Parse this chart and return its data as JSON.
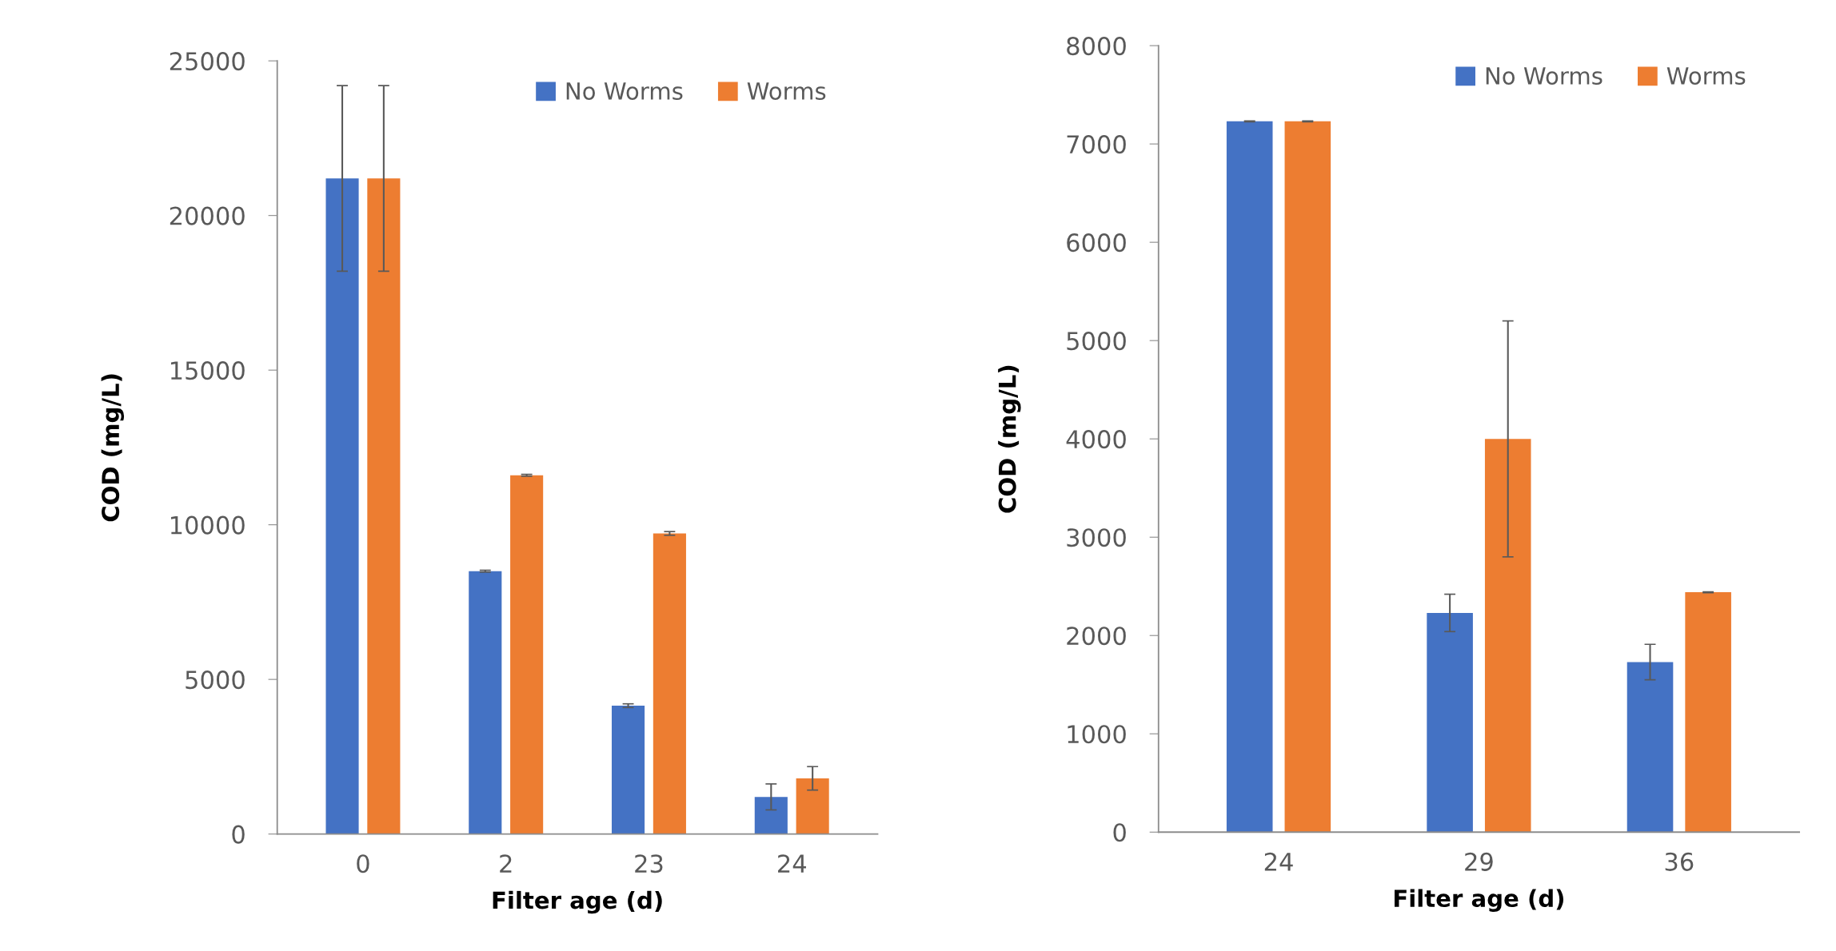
{
  "chart_data": [
    {
      "type": "bar",
      "xlabel": "Filter age (d)",
      "ylabel": "COD (mg/L)",
      "categories": [
        "0",
        "2",
        "23",
        "24"
      ],
      "ylim": [
        0,
        25000
      ],
      "yticks": [
        0,
        5000,
        10000,
        15000,
        20000,
        25000
      ],
      "grid": false,
      "legend": "top right",
      "series": [
        {
          "name": "No Worms",
          "color": "#4472c4",
          "values": [
            21200,
            8500,
            4150,
            1200
          ],
          "errors": [
            3000,
            30,
            60,
            420
          ]
        },
        {
          "name": "Worms",
          "color": "#ed7d31",
          "values": [
            21200,
            11600,
            9720,
            1800
          ],
          "errors": [
            3000,
            30,
            60,
            380
          ]
        }
      ]
    },
    {
      "type": "bar",
      "xlabel": "Filter age (d)",
      "ylabel": "COD (mg/L)",
      "categories": [
        "24",
        "29",
        "36"
      ],
      "ylim": [
        0,
        8000
      ],
      "yticks": [
        0,
        1000,
        2000,
        3000,
        4000,
        5000,
        6000,
        7000,
        8000
      ],
      "grid": false,
      "legend": "top right",
      "series": [
        {
          "name": "No Worms",
          "color": "#4472c4",
          "values": [
            7230,
            2230,
            1730
          ],
          "errors": [
            5,
            190,
            180
          ]
        },
        {
          "name": "Worms",
          "color": "#ed7d31",
          "values": [
            7230,
            4000,
            2440
          ],
          "errors": [
            5,
            1200,
            5
          ]
        }
      ]
    }
  ]
}
